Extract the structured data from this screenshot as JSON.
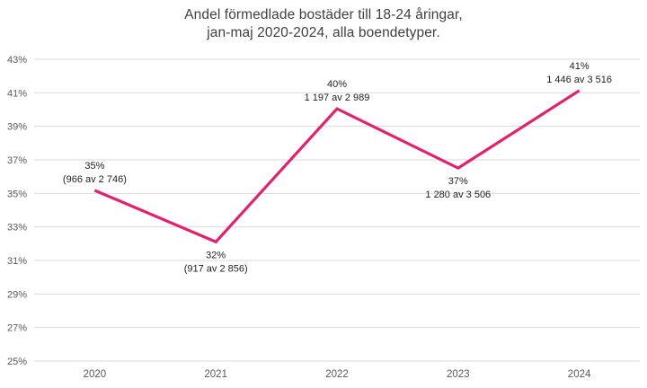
{
  "title": {
    "line1": "Andel förmedlade bostäder till 18-24 åringar,",
    "line2": "jan-maj 2020-2024, alla boendetyper."
  },
  "colors": {
    "line": "#E0236E",
    "grid": "#D9D9D9",
    "axis_text": "#595959",
    "title_text": "#404040",
    "label_text": "#1f1f1f"
  },
  "chart_data": {
    "type": "line",
    "title": "Andel förmedlade bostäder till 18-24 åringar, jan-maj 2020-2024, alla boendetyper.",
    "categories": [
      "2020",
      "2021",
      "2022",
      "2023",
      "2024"
    ],
    "values": [
      35.18,
      32.11,
      40.05,
      36.51,
      41.13
    ],
    "point_labels": [
      {
        "pct": "35%",
        "detail": "(966 av 2 746)",
        "position": "above"
      },
      {
        "pct": "32%",
        "detail": "(917 av 2 856)",
        "position": "below"
      },
      {
        "pct": "40%",
        "detail": "1 197 av 2 989",
        "position": "above"
      },
      {
        "pct": "37%",
        "detail": "1 280 av 3 506",
        "position": "below"
      },
      {
        "pct": "41%",
        "detail": "1 446 av 3 516",
        "position": "above"
      }
    ],
    "ylim": [
      25,
      43
    ],
    "ytick_values": [
      25,
      27,
      29,
      31,
      33,
      35,
      37,
      39,
      41,
      43
    ],
    "ytick_labels": [
      "25%",
      "27%",
      "29%",
      "31%",
      "33%",
      "35%",
      "37%",
      "39%",
      "41%",
      "43%"
    ],
    "grid": true,
    "legend": false
  }
}
